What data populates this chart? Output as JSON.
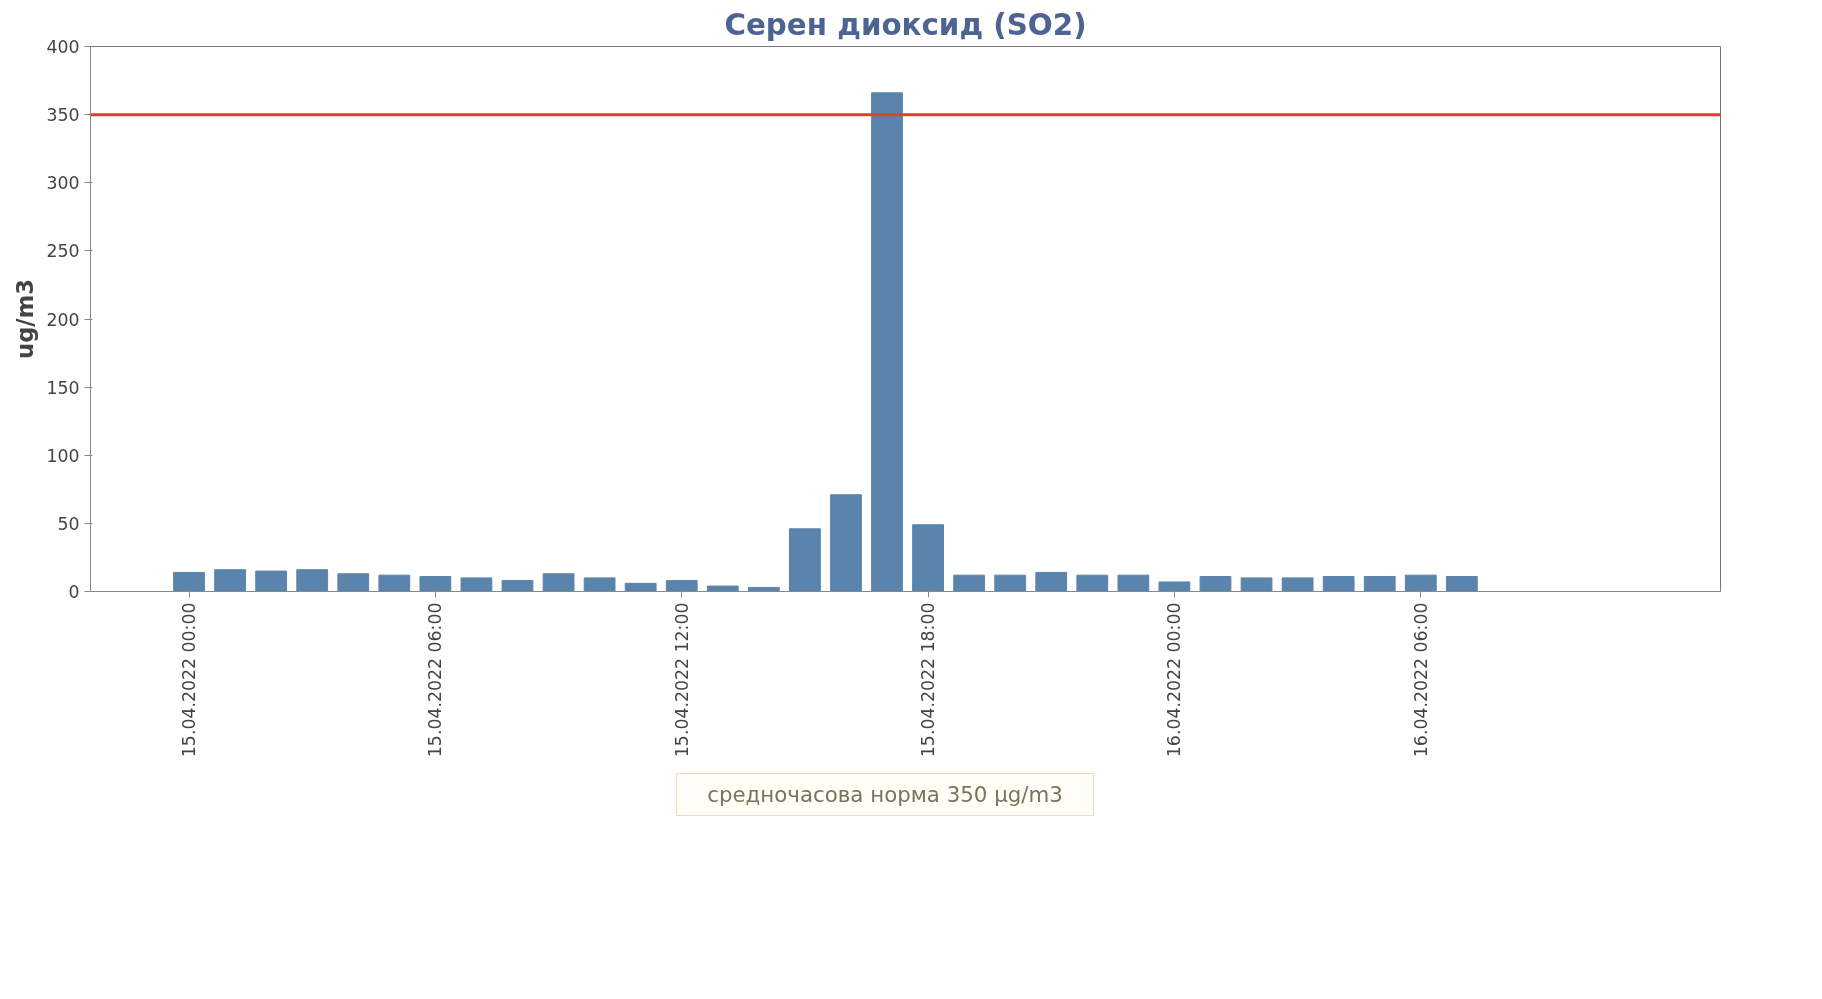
{
  "chart_data": {
    "type": "bar",
    "title": "Серен диоксид (SO2)",
    "ylabel": "ug/m3",
    "x": [
      "2022-04-15T00:00",
      "2022-04-15T01:00",
      "2022-04-15T02:00",
      "2022-04-15T03:00",
      "2022-04-15T04:00",
      "2022-04-15T05:00",
      "2022-04-15T06:00",
      "2022-04-15T07:00",
      "2022-04-15T08:00",
      "2022-04-15T09:00",
      "2022-04-15T10:00",
      "2022-04-15T11:00",
      "2022-04-15T12:00",
      "2022-04-15T13:00",
      "2022-04-15T14:00",
      "2022-04-15T15:00",
      "2022-04-15T16:00",
      "2022-04-15T17:00",
      "2022-04-15T18:00",
      "2022-04-15T19:00",
      "2022-04-15T20:00",
      "2022-04-15T21:00",
      "2022-04-15T22:00",
      "2022-04-15T23:00",
      "2022-04-16T00:00",
      "2022-04-16T01:00",
      "2022-04-16T02:00",
      "2022-04-16T03:00",
      "2022-04-16T04:00",
      "2022-04-16T05:00",
      "2022-04-16T06:00",
      "2022-04-16T07:00"
    ],
    "series": [
      {
        "color": "#5b84ac",
        "values": [
          14,
          16,
          15,
          16,
          13,
          12,
          11,
          10,
          8,
          13,
          10,
          6,
          8,
          4,
          3,
          46,
          71,
          366,
          49,
          12,
          12,
          14,
          12,
          12,
          7,
          11,
          10,
          10,
          11,
          11,
          12,
          11
        ]
      }
    ],
    "xlim": [
      "2022-04-14T21:36",
      "2022-04-16T13:18"
    ],
    "xticks": [
      {
        "value": "2022-04-15T00:00",
        "label": "15.04.2022 00:00"
      },
      {
        "value": "2022-04-15T06:00",
        "label": "15.04.2022 06:00"
      },
      {
        "value": "2022-04-15T12:00",
        "label": "15.04.2022 12:00"
      },
      {
        "value": "2022-04-15T18:00",
        "label": "15.04.2022 18:00"
      },
      {
        "value": "2022-04-16T00:00",
        "label": "16.04.2022 00:00"
      },
      {
        "value": "2022-04-16T06:00",
        "label": "16.04.2022 06:00"
      }
    ],
    "ylim": [
      0,
      400
    ],
    "yticks": [
      0,
      50,
      100,
      150,
      200,
      250,
      300,
      350,
      400
    ],
    "ref_lines": [
      {
        "axis": "y",
        "value": 350,
        "color": "#e8392f"
      }
    ],
    "annotations": [
      "средночасова норма 350 µg/m3"
    ]
  }
}
